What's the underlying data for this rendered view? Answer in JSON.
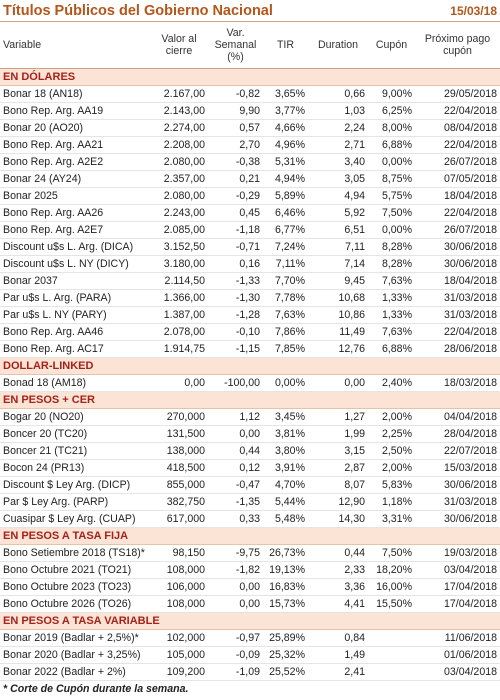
{
  "title": "Títulos Públicos del Gobierno Nacional",
  "date": "15/03/18",
  "columns": [
    "Variable",
    "Valor al cierre",
    "Var. Semanal (%)",
    "TIR",
    "Duration",
    "Cupón",
    "Próximo pago cupón"
  ],
  "sections": [
    {
      "title": "EN DÓLARES",
      "rows": [
        [
          "Bonar 18 (AN18)",
          "2.167,00",
          "-0,82",
          "3,65%",
          "0,66",
          "9,00%",
          "29/05/2018"
        ],
        [
          "Bono Rep. Arg. AA19",
          "2.143,00",
          "9,90",
          "3,77%",
          "1,03",
          "6,25%",
          "22/04/2018"
        ],
        [
          "Bonar 20 (AO20)",
          "2.274,00",
          "0,57",
          "4,66%",
          "2,24",
          "8,00%",
          "08/04/2018"
        ],
        [
          "Bono Rep. Arg. AA21",
          "2.208,00",
          "2,70",
          "4,96%",
          "2,71",
          "6,88%",
          "22/04/2018"
        ],
        [
          "Bono Rep. Arg. A2E2",
          "2.080,00",
          "-0,38",
          "5,31%",
          "3,40",
          "0,00%",
          "26/07/2018"
        ],
        [
          "Bonar 24 (AY24)",
          "2.357,00",
          "0,21",
          "4,94%",
          "3,05",
          "8,75%",
          "07/05/2018"
        ],
        [
          "Bonar 2025",
          "2.080,00",
          "-0,29",
          "5,89%",
          "4,94",
          "5,75%",
          "18/04/2018"
        ],
        [
          "Bono Rep. Arg. AA26",
          "2.243,00",
          "0,45",
          "6,46%",
          "5,92",
          "7,50%",
          "22/04/2018"
        ],
        [
          "Bono Rep. Arg. A2E7",
          "2.085,00",
          "-1,18",
          "6,77%",
          "6,51",
          "0,00%",
          "26/07/2018"
        ],
        [
          "Discount u$s L. Arg. (DICA)",
          "3.152,50",
          "-0,71",
          "7,24%",
          "7,11",
          "8,28%",
          "30/06/2018"
        ],
        [
          "Discount u$s L. NY (DICY)",
          "3.180,00",
          "0,16",
          "7,11%",
          "7,14",
          "8,28%",
          "30/06/2018"
        ],
        [
          "Bonar 2037",
          "2.114,50",
          "-1,33",
          "7,70%",
          "9,45",
          "7,63%",
          "18/04/2018"
        ],
        [
          "Par u$s L. Arg. (PARA)",
          "1.366,00",
          "-1,30",
          "7,78%",
          "10,68",
          "1,33%",
          "31/03/2018"
        ],
        [
          "Par u$s L. NY (PARY)",
          "1.387,00",
          "-1,28",
          "7,63%",
          "10,86",
          "1,33%",
          "31/03/2018"
        ],
        [
          "Bono Rep. Arg. AA46",
          "2.078,00",
          "-0,10",
          "7,86%",
          "11,49",
          "7,63%",
          "22/04/2018"
        ],
        [
          "Bono Rep. Arg. AC17",
          "1.914,75",
          "-1,15",
          "7,85%",
          "12,76",
          "6,88%",
          "28/06/2018"
        ]
      ]
    },
    {
      "title": "DOLLAR-LINKED",
      "rows": [
        [
          "Bonad 18 (AM18)",
          "0,00",
          "-100,00",
          "0,00%",
          "0,00",
          "2,40%",
          "18/03/2018"
        ]
      ]
    },
    {
      "title": "EN PESOS + CER",
      "rows": [
        [
          "Bogar 20 (NO20)",
          "270,000",
          "1,12",
          "3,45%",
          "1,27",
          "2,00%",
          "04/04/2018"
        ],
        [
          "Boncer 20 (TC20)",
          "131,500",
          "0,00",
          "3,81%",
          "1,99",
          "2,25%",
          "28/04/2018"
        ],
        [
          "Boncer 21 (TC21)",
          "138,000",
          "0,44",
          "3,80%",
          "3,15",
          "2,50%",
          "22/07/2018"
        ],
        [
          "Bocon 24 (PR13)",
          "418,500",
          "0,12",
          "3,91%",
          "2,87",
          "2,00%",
          "15/03/2018"
        ],
        [
          "Discount $ Ley Arg. (DICP)",
          "855,000",
          "-0,47",
          "4,70%",
          "8,07",
          "5,83%",
          "30/06/2018"
        ],
        [
          "Par $ Ley Arg. (PARP)",
          "382,750",
          "-1,35",
          "5,44%",
          "12,90",
          "1,18%",
          "31/03/2018"
        ],
        [
          "Cuasipar $ Ley Arg. (CUAP)",
          "617,000",
          "0,33",
          "5,48%",
          "14,30",
          "3,31%",
          "30/06/2018"
        ]
      ]
    },
    {
      "title": "EN PESOS A TASA FIJA",
      "rows": [
        [
          "Bono Setiembre 2018 (TS18)*",
          "98,150",
          "-9,75",
          "26,73%",
          "0,44",
          "7,50%",
          "19/03/2018"
        ],
        [
          "Bono Octubre 2021 (TO21)",
          "108,000",
          "-1,82",
          "19,13%",
          "2,33",
          "18,20%",
          "03/04/2018"
        ],
        [
          "Bono Octubre 2023 (TO23)",
          "106,000",
          "0,00",
          "16,83%",
          "3,36",
          "16,00%",
          "17/04/2018"
        ],
        [
          "Bono Octubre 2026 (TO26)",
          "108,000",
          "0,00",
          "15,73%",
          "4,41",
          "15,50%",
          "17/04/2018"
        ]
      ]
    },
    {
      "title": "EN PESOS A TASA VARIABLE",
      "rows": [
        [
          "Bonar 2019 (Badlar + 2,5%)*",
          "102,000",
          "-0,97",
          "25,89%",
          "0,84",
          null,
          "11/06/2018"
        ],
        [
          "Bonar 2020 (Badlar + 3,25%)",
          "105,000",
          "-0,09",
          "25,32%",
          "1,49",
          null,
          "01/06/2018"
        ],
        [
          "Bonar 2022 (Badlar + 2%)",
          "109,200",
          "-1,09",
          "25,52%",
          "2,41",
          null,
          "03/04/2018"
        ]
      ]
    }
  ],
  "footnote": "* Corte de Cupón durante la semana."
}
